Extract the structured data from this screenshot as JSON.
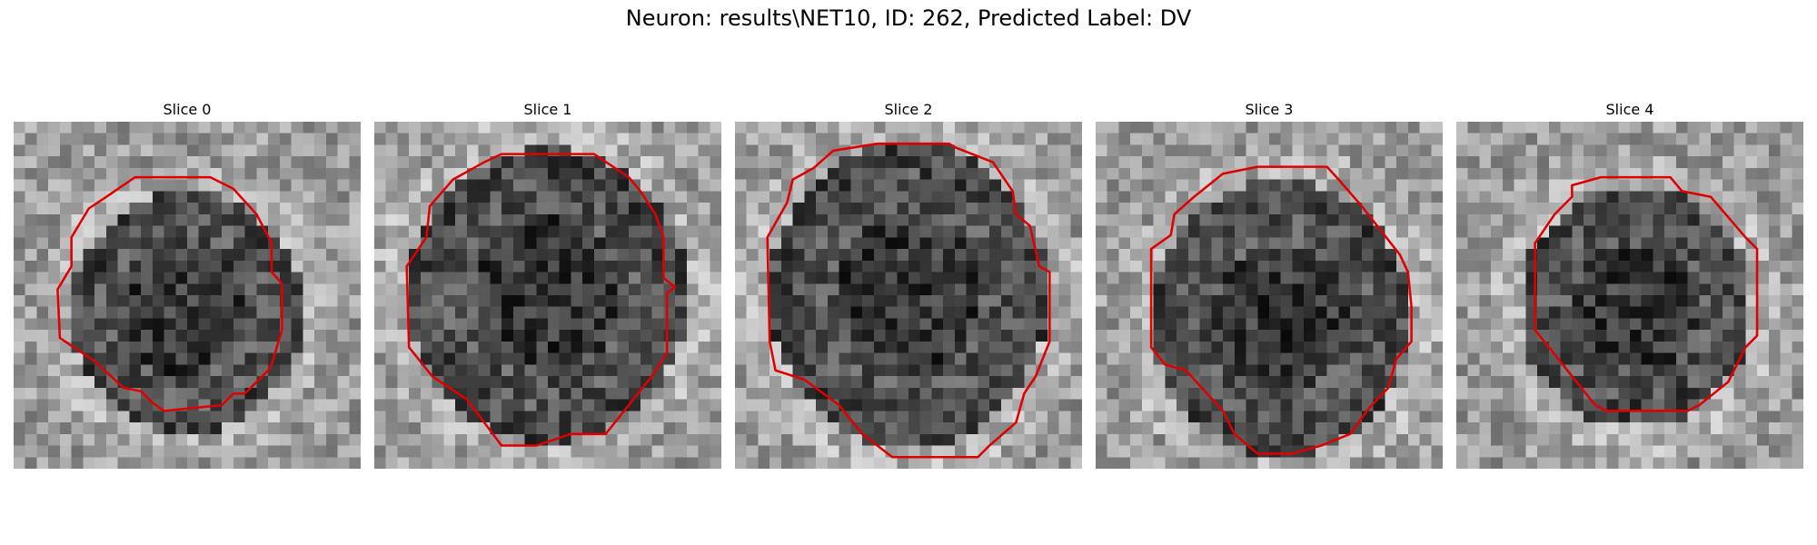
{
  "figure": {
    "title": "Neuron: results\\NET10, ID: 262, Predicted Label: DV",
    "contour_color": "#e00000"
  },
  "panels": [
    {
      "title": "Slice 0"
    },
    {
      "title": "Slice 1"
    },
    {
      "title": "Slice 2"
    },
    {
      "title": "Slice 3"
    },
    {
      "title": "Slice 4"
    }
  ]
}
